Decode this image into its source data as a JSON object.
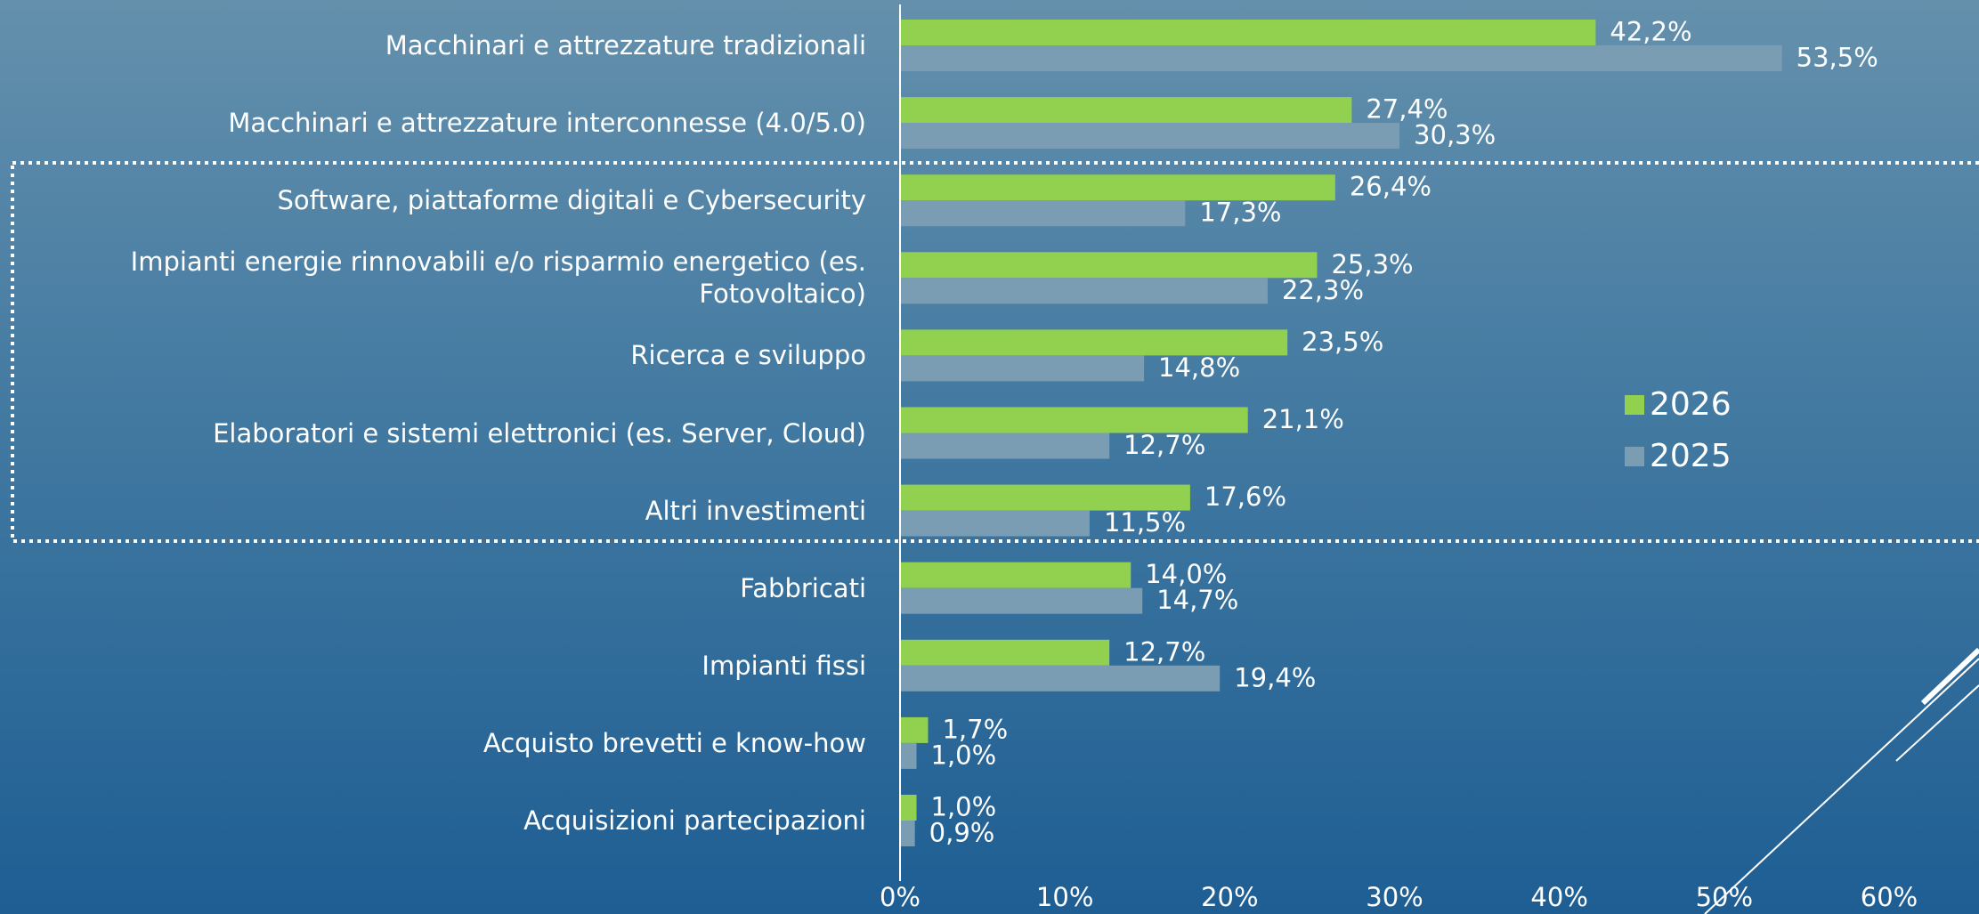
{
  "chart_data": {
    "type": "bar",
    "orientation": "horizontal",
    "categories": [
      "Macchinari e attrezzature tradizionali",
      "Macchinari e attrezzature interconnesse (4.0/5.0)",
      "Software, piattaforme digitali e Cybersecurity",
      "Impianti energie rinnovabili e/o risparmio energetico (es. Fotovoltaico)",
      "Ricerca e sviluppo",
      "Elaboratori e sistemi elettronici (es. Server, Cloud)",
      "Altri investimenti",
      "Fabbricati",
      "Impianti fissi",
      "Acquisto brevetti e know-how",
      "Acquisizioni partecipazioni"
    ],
    "series": [
      {
        "name": "2026",
        "color": "#92d050",
        "values": [
          42.2,
          27.4,
          26.4,
          25.3,
          23.5,
          21.1,
          17.6,
          14.0,
          12.7,
          1.7,
          1.0
        ],
        "value_labels": [
          "42,2%",
          "27,4%",
          "26,4%",
          "25,3%",
          "23,5%",
          "21,1%",
          "17,6%",
          "14,0%",
          "12,7%",
          "1,7%",
          "1,0%"
        ]
      },
      {
        "name": "2025",
        "color": "#7b9db4",
        "values": [
          53.5,
          30.3,
          17.3,
          22.3,
          14.8,
          12.7,
          11.5,
          14.7,
          19.4,
          1.0,
          0.9
        ],
        "value_labels": [
          "53,5%",
          "30,3%",
          "17,3%",
          "22,3%",
          "14,8%",
          "12,7%",
          "11,5%",
          "14,7%",
          "19,4%",
          "1,0%",
          "0,9%"
        ]
      }
    ],
    "xlim": [
      0,
      60
    ],
    "xticks": [
      {
        "value": 0,
        "label": "0%"
      },
      {
        "value": 10,
        "label": "10%"
      },
      {
        "value": 20,
        "label": "20%"
      },
      {
        "value": 30,
        "label": "30%"
      },
      {
        "value": 40,
        "label": "40%"
      },
      {
        "value": 50,
        "label": "50%"
      },
      {
        "value": 60,
        "label": "60%"
      }
    ],
    "legend": "right"
  }
}
